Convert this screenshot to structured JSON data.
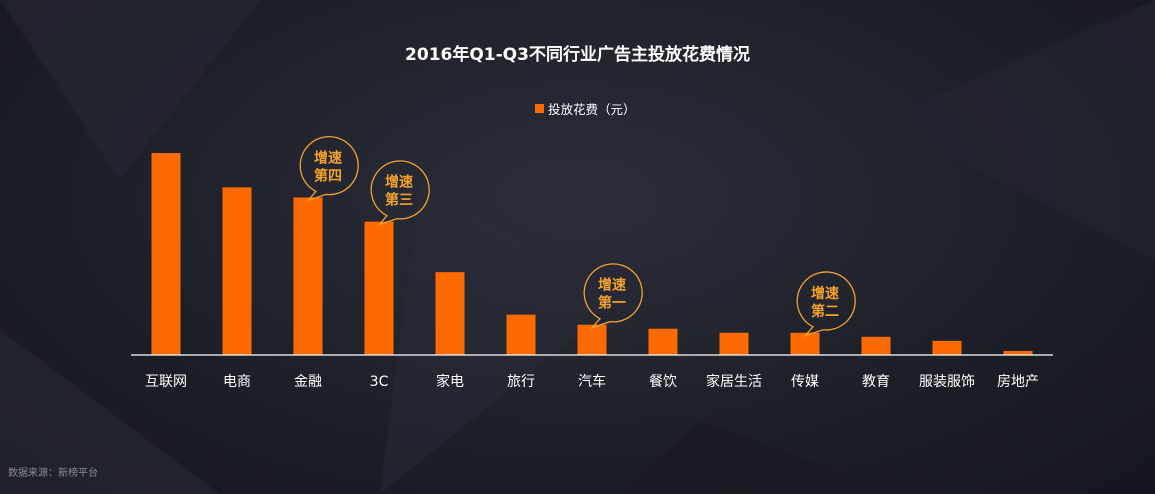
{
  "title": "2016年Q1-Q3不同行业广告主投放花费情况",
  "legend_label": "投放花费（元）",
  "source_note": "数据来源：新榜平台",
  "colors": {
    "bar": "#ff6a00",
    "badge": "#f3a32c",
    "axis": "#ffffff",
    "background": "#1e2029"
  },
  "chart_data": {
    "type": "bar",
    "categories": [
      "互联网",
      "电商",
      "金融",
      "3C",
      "家电",
      "旅行",
      "汽车",
      "餐饮",
      "家居生活",
      "传媒",
      "教育",
      "服装服饰",
      "房地产"
    ],
    "series": [
      {
        "name": "投放花费（元）",
        "values": [
          100,
          83,
          78,
          66,
          41,
          20,
          15,
          13,
          11,
          11,
          9,
          7,
          2
        ]
      }
    ],
    "ylim": [
      0,
      100
    ],
    "grid": false,
    "legend_position": "top-center",
    "annotations": [
      {
        "category": "汽车",
        "line1": "增速",
        "line2": "第一"
      },
      {
        "category": "传媒",
        "line1": "增速",
        "line2": "第二"
      },
      {
        "category": "3C",
        "line1": "增速",
        "line2": "第三"
      },
      {
        "category": "金融",
        "line1": "增速",
        "line2": "第四"
      }
    ]
  }
}
